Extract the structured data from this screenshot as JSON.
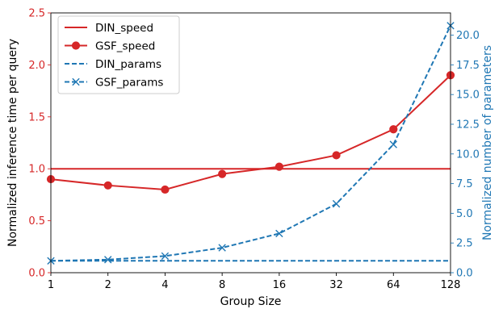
{
  "chart_data": {
    "type": "line",
    "xlabel": "Group Size",
    "ylabel_left": "Normalized inference time per query",
    "ylabel_right": "Normalized number of parameters",
    "x_tick_labels": [
      "1",
      "2",
      "4",
      "8",
      "16",
      "32",
      "64",
      "128"
    ],
    "x": [
      1,
      2,
      4,
      8,
      16,
      32,
      64,
      128
    ],
    "x_scale": "log2",
    "ylim_left": [
      0,
      2.5
    ],
    "ylim_right": [
      0,
      21.875
    ],
    "yticks_left": [
      "0.0",
      "0.5",
      "1.0",
      "1.5",
      "2.0",
      "2.5"
    ],
    "yticks_right": [
      "0.0",
      "2.5",
      "5.0",
      "7.5",
      "10.0",
      "12.5",
      "15.0",
      "17.5",
      "20.0"
    ],
    "grid": false,
    "legend_position": "top-left",
    "colors": {
      "left_axis": "#d62728",
      "right_axis": "#1f77b4"
    },
    "series": [
      {
        "name": "DIN_speed",
        "axis": "left",
        "color": "#d62728",
        "style": "solid",
        "marker": "none",
        "values": [
          1.0,
          1.0,
          1.0,
          1.0,
          1.0,
          1.0,
          1.0,
          1.0
        ]
      },
      {
        "name": "GSF_speed",
        "axis": "left",
        "color": "#d62728",
        "style": "solid",
        "marker": "circle",
        "values": [
          0.9,
          0.84,
          0.8,
          0.95,
          1.02,
          1.13,
          1.38,
          1.9
        ]
      },
      {
        "name": "DIN_params",
        "axis": "right",
        "color": "#1f77b4",
        "style": "dashed",
        "marker": "none",
        "values": [
          1.0,
          1.0,
          1.0,
          1.0,
          1.0,
          1.0,
          1.0,
          1.0
        ]
      },
      {
        "name": "GSF_params",
        "axis": "right",
        "color": "#1f77b4",
        "style": "dashed",
        "marker": "x",
        "values": [
          1.0,
          1.1,
          1.4,
          2.1,
          3.3,
          5.8,
          10.8,
          20.8
        ]
      }
    ]
  }
}
